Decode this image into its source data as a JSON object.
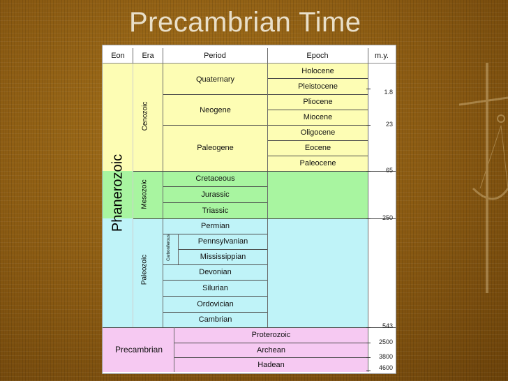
{
  "slide": {
    "title": "Precambrian Time"
  },
  "table": {
    "headers": {
      "eon": "Eon",
      "era": "Era",
      "period": "Period",
      "epoch": "Epoch",
      "my": "m.y."
    },
    "eons": {
      "phanerozoic": "Phanerozoic",
      "precambrian": "Precambrian"
    },
    "eras": {
      "cenozoic": "Cenozoic",
      "mesozoic": "Mesozoic",
      "paleozoic": "Paleozoic",
      "carboniferous": "Carboniferous"
    },
    "periods": {
      "quaternary": "Quaternary",
      "neogene": "Neogene",
      "paleogene": "Paleogene",
      "cretaceous": "Cretaceous",
      "jurassic": "Jurassic",
      "triassic": "Triassic",
      "permian": "Permian",
      "pennsylvanian": "Pennsylvanian",
      "mississippian": "Mississippian",
      "devonian": "Devonian",
      "silurian": "Silurian",
      "ordovician": "Ordovician",
      "cambrian": "Cambrian",
      "proterozoic": "Proterozoic",
      "archean": "Archean",
      "hadean": "Hadean"
    },
    "epochs": {
      "holocene": "Holocene",
      "pleistocene": "Pleistocene",
      "pliocene": "Pliocene",
      "miocene": "Miocene",
      "oligocene": "Oligocene",
      "eocene": "Eocene",
      "paleocene": "Paleocene"
    },
    "ages": {
      "a1": "1.8",
      "a2": "23",
      "a3": "65",
      "a4": "250",
      "a5": "543",
      "a6": "2500",
      "a7": "3800",
      "a8": "4600"
    },
    "colors": {
      "cenozoic": "#fdfdb4",
      "mesozoic": "#a8f5a0",
      "paleozoic": "#bff3f8",
      "precambrian": "#f6c9f2"
    }
  }
}
